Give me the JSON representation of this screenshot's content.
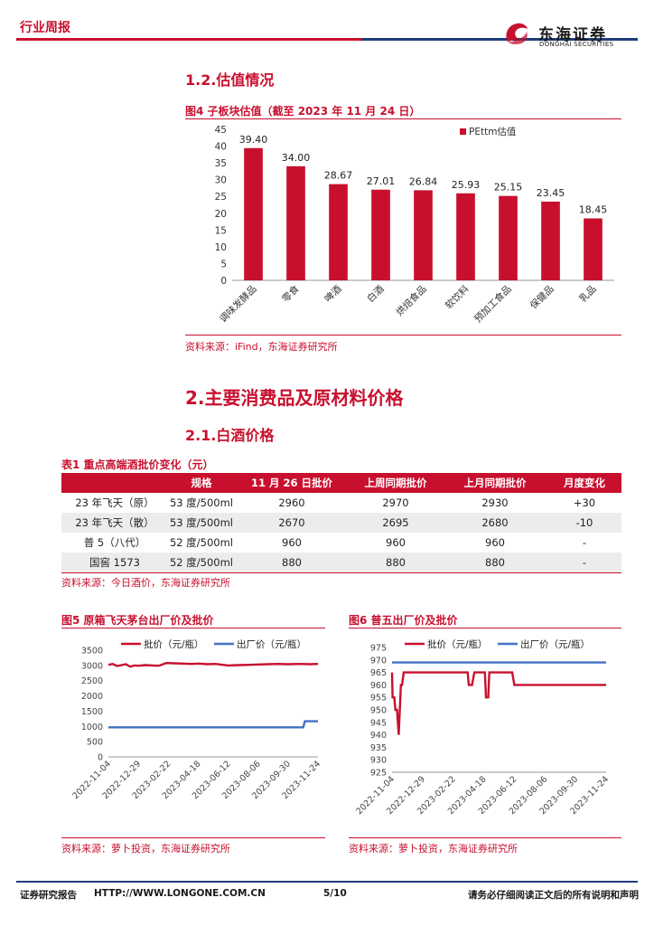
{
  "header": {
    "report_type": "行业周报",
    "logo_cn": "东海证券",
    "logo_en": "DONGHAI SECURITIES"
  },
  "section_1_2": {
    "title": "1.2.估值情况"
  },
  "fig4": {
    "title": "图4 子板块估值（截至 2023 年 11 月 24 日）",
    "source": "资料来源：iFind，东海证券研究所"
  },
  "section_2": {
    "title": "2.主要消费品及原材料价格"
  },
  "section_2_1": {
    "title": "2.1.白酒价格"
  },
  "table1": {
    "title": "表1 重点高端酒批价变化（元）",
    "headers": [
      "",
      "规格",
      "11 月 26 日批价",
      "上周同期批价",
      "上月同期批价",
      "月度变化"
    ],
    "rows": [
      [
        "23 年飞天（原）",
        "53 度/500ml",
        "2960",
        "2970",
        "2930",
        "+30"
      ],
      [
        "23 年飞天（散）",
        "53 度/500ml",
        "2670",
        "2695",
        "2680",
        "-10"
      ],
      [
        "普 5（八代）",
        "52 度/500ml",
        "960",
        "960",
        "960",
        "-"
      ],
      [
        "国窖 1573",
        "52 度/500ml",
        "880",
        "880",
        "880",
        "-"
      ]
    ],
    "source": "资料来源：今日酒价，东海证券研究所"
  },
  "fig5": {
    "title": "图5 原箱飞天茅台出厂价及批价",
    "source": "资料来源：萝卜投资，东海证券研究所"
  },
  "fig6": {
    "title": "图6 普五出厂价及批价",
    "source": "资料来源：萝卜投资，东海证券研究所"
  },
  "footer": {
    "left": "证券研究报告",
    "url": "HTTP://WWW.LONGONE.COM.CN",
    "page": "5/10",
    "right": "请务必仔细阅读正文后的所有说明和声明"
  },
  "colors": {
    "accent_red": "#c8102e",
    "navy": "#1f3d7a",
    "blue_line": "#4472c4"
  },
  "chart_data": [
    {
      "type": "bar",
      "categories": [
        "调味发酵品",
        "零食",
        "啤酒",
        "白酒",
        "烘焙食品",
        "软饮料",
        "预加工食品",
        "保健品",
        "乳品"
      ],
      "series": [
        {
          "name": "PEttm估值",
          "values": [
            39.4,
            34.0,
            28.67,
            27.01,
            26.84,
            25.93,
            25.15,
            23.45,
            18.45
          ]
        }
      ],
      "data_labels": [
        "39.40",
        "34.00",
        "28.67",
        "27.01",
        "26.84",
        "25.93",
        "25.15",
        "23.45",
        "18.45"
      ],
      "yticks": [
        "0",
        "5",
        "10",
        "15",
        "20",
        "25",
        "30",
        "35",
        "40",
        "45"
      ],
      "ylim": [
        0,
        45
      ],
      "legend": "top-right",
      "color": "#c8102e"
    },
    {
      "type": "line",
      "x_ticks": [
        "2022-11-04",
        "2022-12-29",
        "2023-02-22",
        "2023-04-18",
        "2023-06-12",
        "2023-08-06",
        "2023-09-30",
        "2023-11-24"
      ],
      "yticks": [
        "0",
        "500",
        "1000",
        "1500",
        "2000",
        "2500",
        "3000",
        "3500"
      ],
      "ylim": [
        0,
        3500
      ],
      "legend": "top",
      "series": [
        {
          "name": "批价（元/瓶）",
          "color": "#c8102e",
          "x": [
            "2022-11-04",
            "2022-11-12",
            "2022-11-20",
            "2022-11-28",
            "2022-12-06",
            "2022-12-14",
            "2022-12-22",
            "2022-12-30",
            "2023-01-10",
            "2023-01-25",
            "2023-02-05",
            "2023-02-18",
            "2023-03-05",
            "2023-03-20",
            "2023-04-05",
            "2023-04-18",
            "2023-05-05",
            "2023-05-20",
            "2023-06-12",
            "2023-07-01",
            "2023-07-20",
            "2023-08-06",
            "2023-08-25",
            "2023-09-10",
            "2023-09-30",
            "2023-10-20",
            "2023-11-10",
            "2023-11-24"
          ],
          "values": [
            3020,
            3050,
            2980,
            3010,
            3040,
            2960,
            3000,
            2990,
            3010,
            3000,
            2990,
            3080,
            3070,
            3060,
            3050,
            3060,
            3040,
            3050,
            3000,
            3010,
            3020,
            3030,
            3040,
            3050,
            3040,
            3050,
            3040,
            3050
          ]
        },
        {
          "name": "出厂价（元/瓶）",
          "color": "#4472c4",
          "x": [
            "2022-11-04",
            "2023-10-28",
            "2023-10-31",
            "2023-11-24"
          ],
          "values": [
            969,
            969,
            1169,
            1169
          ]
        }
      ]
    },
    {
      "type": "line",
      "x_ticks": [
        "2022-11-04",
        "2022-12-29",
        "2023-02-22",
        "2023-04-18",
        "2023-06-12",
        "2023-08-06",
        "2023-09-30",
        "2023-11-24"
      ],
      "yticks": [
        "925",
        "930",
        "935",
        "940",
        "945",
        "950",
        "955",
        "960",
        "965",
        "970",
        "975"
      ],
      "ylim": [
        925,
        975
      ],
      "legend": "top",
      "series": [
        {
          "name": "批价（元/瓶）",
          "color": "#c8102e",
          "x": [
            "2022-11-04",
            "2022-11-05",
            "2022-11-08",
            "2022-11-10",
            "2022-11-13",
            "2022-11-16",
            "2022-11-20",
            "2022-11-22",
            "2022-11-25",
            "2022-11-27",
            "2022-12-10",
            "2023-03-20",
            "2023-03-22",
            "2023-03-28",
            "2023-04-01",
            "2023-04-20",
            "2023-04-22",
            "2023-04-26",
            "2023-04-28",
            "2023-06-08",
            "2023-06-12",
            "2023-11-24"
          ],
          "values": [
            965,
            955,
            955,
            950,
            950,
            940,
            960,
            960,
            965,
            965,
            965,
            965,
            960,
            960,
            965,
            965,
            955,
            955,
            965,
            965,
            960,
            960
          ]
        },
        {
          "name": "出厂价（元/瓶）",
          "color": "#4472c4",
          "x": [
            "2022-11-04",
            "2023-11-24"
          ],
          "values": [
            969,
            969
          ]
        }
      ]
    }
  ]
}
